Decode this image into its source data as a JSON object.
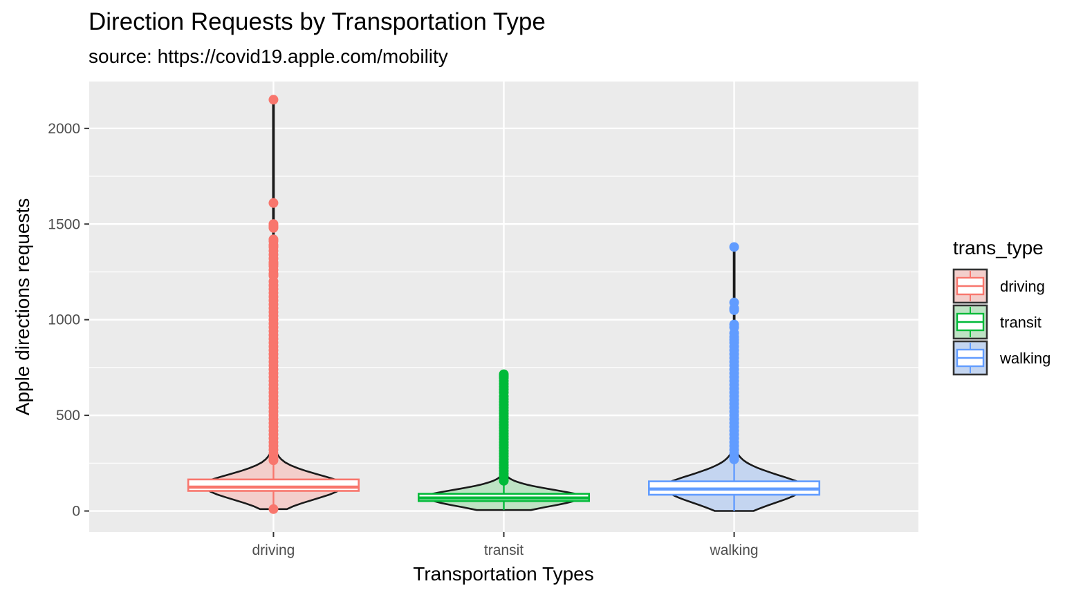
{
  "chart_data": {
    "type": "violin",
    "title": "Direction Requests by Transportation Type",
    "subtitle": "source: https://covid19.apple.com/mobility",
    "xlabel": "Transportation Types",
    "ylabel": "Apple directions requests",
    "categories": [
      "driving",
      "transit",
      "walking"
    ],
    "ylim": [
      -110,
      2245
    ],
    "yticks": [
      0,
      500,
      1000,
      1500,
      2000
    ],
    "grid": true,
    "legend": {
      "title": "trans_type",
      "position": "right",
      "entries": [
        "driving",
        "transit",
        "walking"
      ]
    },
    "series": [
      {
        "name": "driving",
        "color": "#F8766D",
        "fill": "#F3CECB",
        "min": 10,
        "max": 2150,
        "q1": 105,
        "median": 125,
        "q3": 165,
        "whisker_low": 15,
        "whisker_high": 255,
        "outliers": [
          10,
          2150,
          1610,
          1500,
          1490,
          1480,
          1420,
          1410,
          1390,
          1380,
          1360,
          1340,
          1320,
          1300,
          1290,
          1280,
          1260,
          1240,
          1230,
          1200,
          1180,
          1160,
          1140,
          1120,
          1100,
          1080,
          1060,
          1040,
          1020,
          1000,
          980,
          960,
          940,
          920,
          900,
          880,
          860,
          840,
          820,
          800,
          780,
          760,
          740,
          720,
          700,
          680,
          660,
          640,
          620,
          600,
          580,
          560,
          540,
          520,
          500,
          480,
          460,
          440,
          420,
          400,
          380,
          360,
          340,
          320,
          300,
          280,
          265
        ]
      },
      {
        "name": "transit",
        "color": "#00BA38",
        "fill": "#BEE3C4",
        "min": 5,
        "max": 715,
        "q1": 52,
        "median": 68,
        "q3": 90,
        "whisker_low": 5,
        "whisker_high": 150,
        "outliers": [
          715,
          705,
          695,
          680,
          665,
          650,
          635,
          620,
          600,
          585,
          570,
          555,
          540,
          525,
          510,
          495,
          480,
          465,
          450,
          435,
          420,
          405,
          390,
          375,
          360,
          345,
          330,
          315,
          300,
          285,
          270,
          255,
          240,
          225,
          210,
          195,
          180,
          165,
          158
        ]
      },
      {
        "name": "walking",
        "color": "#619CFF",
        "fill": "#C4D5F0",
        "min": 0,
        "max": 1380,
        "q1": 85,
        "median": 115,
        "q3": 155,
        "whisker_low": 0,
        "whisker_high": 265,
        "outliers": [
          1380,
          1090,
          1060,
          1050,
          975,
          960,
          930,
          910,
          895,
          880,
          860,
          840,
          820,
          800,
          780,
          760,
          740,
          720,
          700,
          680,
          660,
          640,
          620,
          600,
          580,
          560,
          540,
          520,
          500,
          480,
          460,
          440,
          420,
          400,
          380,
          360,
          340,
          320,
          300,
          280,
          270
        ]
      }
    ]
  }
}
